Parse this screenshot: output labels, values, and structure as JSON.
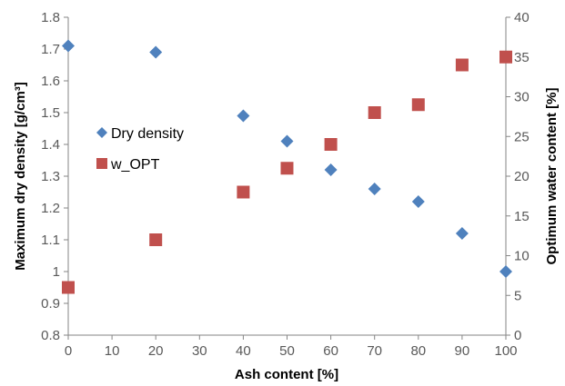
{
  "chart_data": {
    "type": "scatter",
    "xlabel": "Ash content [%]",
    "ylabel_left": "Maximum dry density [g/cm³]",
    "ylabel_right": "Optimum water content [%]",
    "xlim": [
      0,
      100
    ],
    "ylim_left": [
      0.8,
      1.8
    ],
    "ylim_right": [
      0,
      40
    ],
    "x_ticks": [
      "0",
      "10",
      "20",
      "30",
      "40",
      "50",
      "60",
      "70",
      "80",
      "90",
      "100"
    ],
    "y_left_ticks": [
      "0.8",
      "0.9",
      "1",
      "1.1",
      "1.2",
      "1.3",
      "1.4",
      "1.5",
      "1.6",
      "1.7",
      "1.8"
    ],
    "y_right_ticks": [
      "0",
      "5",
      "10",
      "15",
      "20",
      "25",
      "30",
      "35",
      "40"
    ],
    "grid": false,
    "legend_placement": "center-left",
    "series": [
      {
        "name": "Dry density",
        "axis": "left",
        "marker": "diamond",
        "color": "#4F81BD",
        "x": [
          0,
          20,
          40,
          50,
          60,
          70,
          80,
          90,
          100
        ],
        "y": [
          1.71,
          1.69,
          1.49,
          1.41,
          1.32,
          1.26,
          1.22,
          1.12,
          1.0
        ]
      },
      {
        "name": "w_OPT",
        "axis": "right",
        "marker": "square",
        "color": "#C0504D",
        "x": [
          0,
          20,
          40,
          50,
          60,
          70,
          80,
          90,
          100
        ],
        "y": [
          6,
          12,
          18,
          21,
          24,
          28,
          29,
          34,
          35
        ]
      }
    ]
  }
}
